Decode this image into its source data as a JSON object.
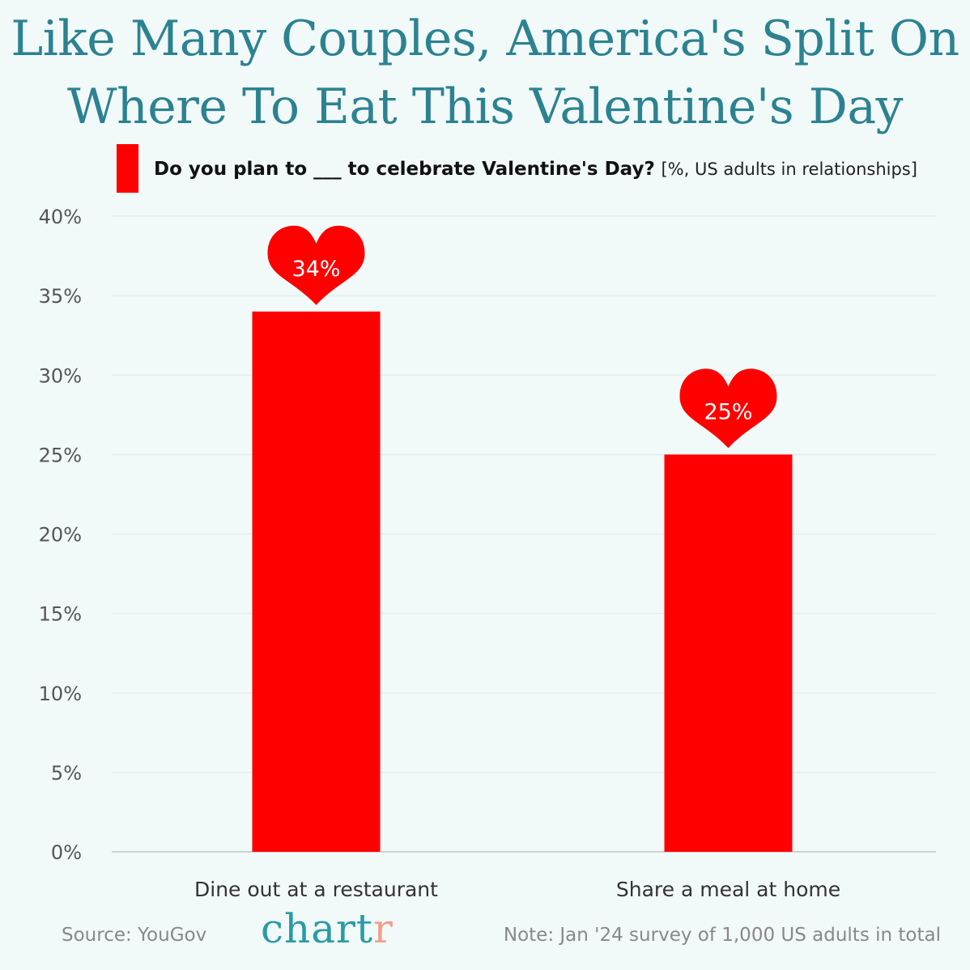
{
  "title": "Like Many Couples, America's Split On Where To Eat This Valentine's Day",
  "legend": {
    "question": "Do you plan to ___ to celebrate Valentine's Day?",
    "units": "[%, US adults in relationships]",
    "color": "#ff0000"
  },
  "footer": {
    "source": "Source: YouGov",
    "brand_main": "chart",
    "brand_tail": "r",
    "note": "Note: Jan '24 survey of 1,000 US adults in total"
  },
  "chart_data": {
    "type": "bar",
    "categories": [
      "Dine out at a restaurant",
      "Share a meal at home"
    ],
    "series": [
      {
        "values": [
          34,
          25
        ],
        "color": "#ff0000"
      }
    ],
    "data_labels": [
      "34%",
      "25%"
    ],
    "ylim": [
      0,
      40
    ],
    "yticks": [
      0,
      5,
      10,
      15,
      20,
      25,
      30,
      35,
      40
    ],
    "ytick_labels": [
      "0%",
      "5%",
      "10%",
      "15%",
      "20%",
      "25%",
      "30%",
      "35%",
      "40%"
    ],
    "grid": true,
    "data_label_marker": "heart-icon",
    "legend_position": "top"
  }
}
